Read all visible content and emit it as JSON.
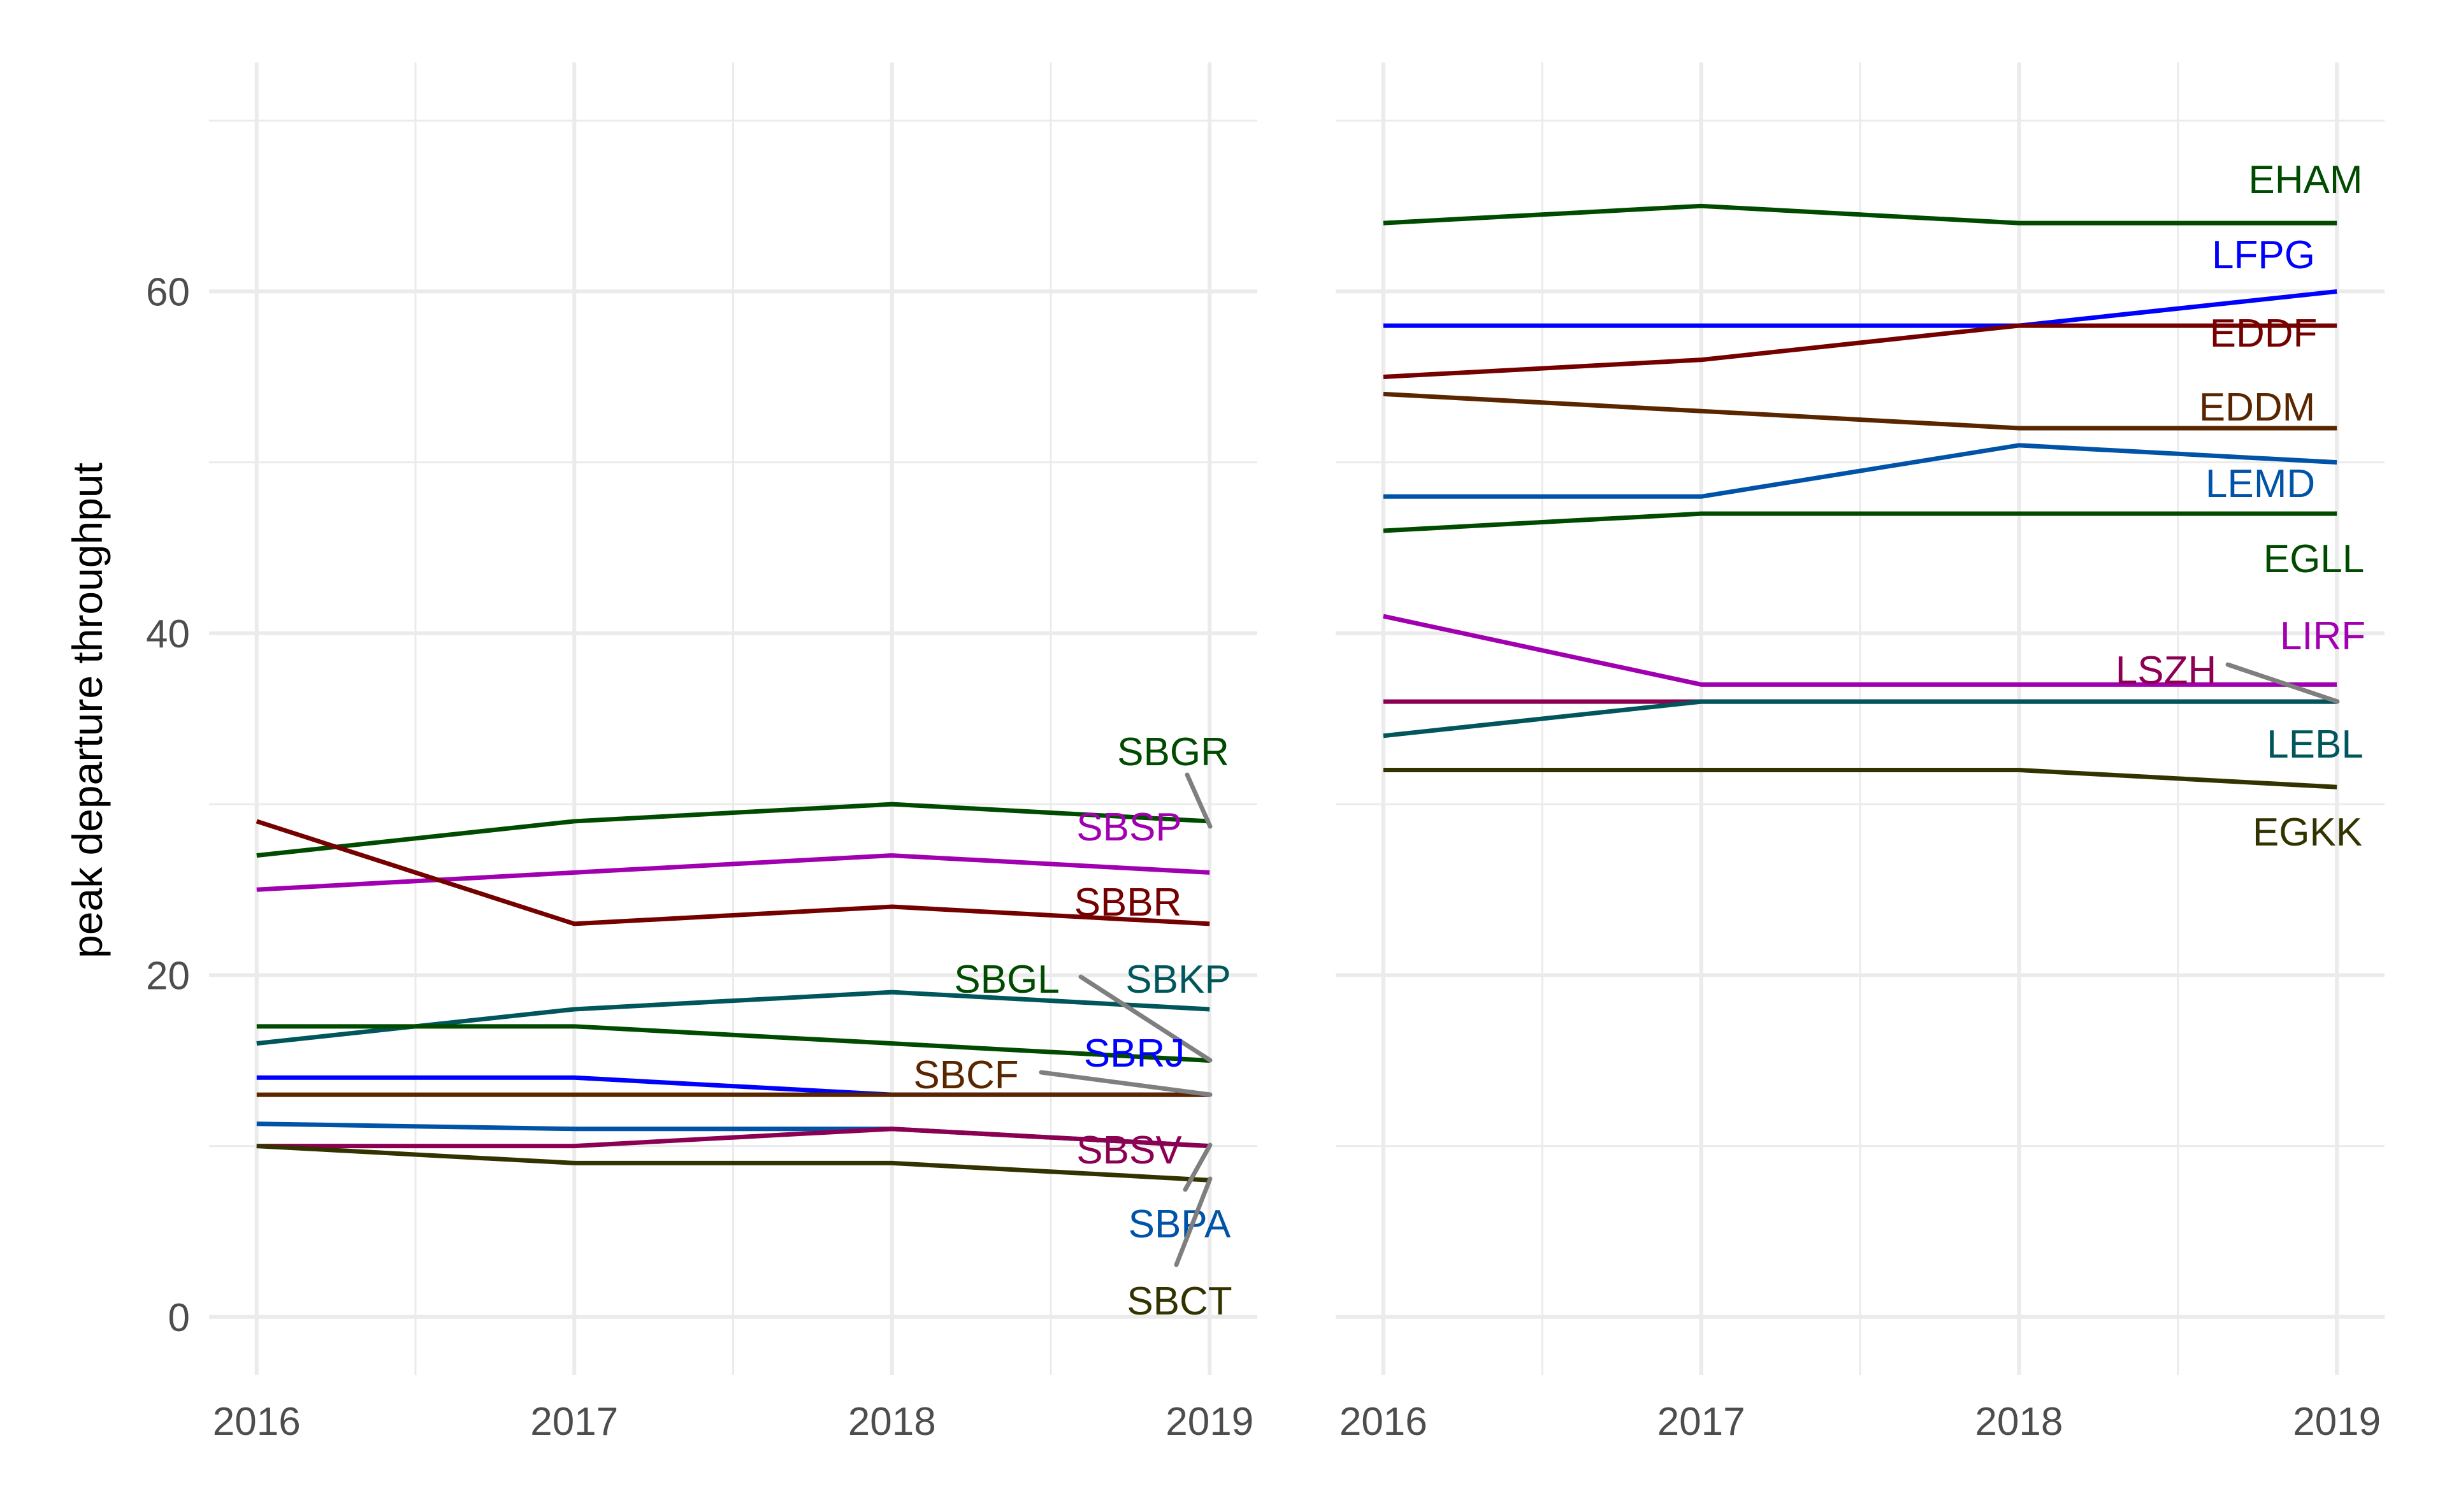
{
  "chart_data": [
    {
      "type": "line",
      "panel": "left",
      "title": "",
      "xlabel": "",
      "ylabel": "peak departure throughput",
      "x": [
        2016,
        2017,
        2018,
        2019
      ],
      "x_tick_labels": [
        "2016",
        "2017",
        "2018",
        "2019"
      ],
      "y_tick_labels": [
        "0",
        "20",
        "40",
        "60"
      ],
      "y_ticks": [
        0,
        20,
        40,
        60
      ],
      "ylim": [
        -3.4,
        73.4
      ],
      "xlim": [
        2015.85,
        2019.15
      ],
      "grid": true,
      "legend": "direct-labels-right",
      "series": [
        {
          "name": "SBGR",
          "color": "#004b00",
          "values": [
            27,
            29,
            30,
            29
          ]
        },
        {
          "name": "SBSP",
          "color": "#a000b0",
          "values": [
            25,
            26,
            27,
            26
          ]
        },
        {
          "name": "SBBR",
          "color": "#750000",
          "values": [
            29,
            23,
            24,
            23
          ]
        },
        {
          "name": "SBKP",
          "color": "#00565a",
          "values": [
            16,
            18,
            19,
            18
          ]
        },
        {
          "name": "SBGL",
          "color": "#004b00",
          "values": [
            17,
            17,
            16,
            15
          ]
        },
        {
          "name": "SBRJ",
          "color": "#0000ff",
          "values": [
            14,
            14,
            13,
            13
          ]
        },
        {
          "name": "SBCF",
          "color": "#5a2600",
          "values": [
            13,
            13,
            13,
            13
          ]
        },
        {
          "name": "SBPA",
          "color": "#0053a6",
          "values": [
            11.3,
            11,
            11,
            10
          ]
        },
        {
          "name": "SBSV",
          "color": "#8b0052",
          "values": [
            10,
            10,
            11,
            10
          ]
        },
        {
          "name": "SBCT",
          "color": "#333300",
          "values": [
            10,
            9,
            9,
            8
          ]
        }
      ]
    },
    {
      "type": "line",
      "panel": "right",
      "title": "",
      "xlabel": "",
      "ylabel": "",
      "x": [
        2016,
        2017,
        2018,
        2019
      ],
      "x_tick_labels": [
        "2016",
        "2017",
        "2018",
        "2019"
      ],
      "y_ticks": [
        0,
        20,
        40,
        60
      ],
      "ylim": [
        -3.4,
        73.4
      ],
      "xlim": [
        2015.85,
        2019.15
      ],
      "grid": true,
      "legend": "direct-labels-right",
      "series": [
        {
          "name": "EHAM",
          "color": "#004b00",
          "values": [
            64,
            65,
            64,
            64
          ]
        },
        {
          "name": "LFPG",
          "color": "#0000ff",
          "values": [
            58,
            58,
            58,
            60
          ]
        },
        {
          "name": "EDDF",
          "color": "#750000",
          "values": [
            55,
            56,
            58,
            58
          ]
        },
        {
          "name": "EDDM",
          "color": "#5a2600",
          "values": [
            54,
            53,
            52,
            52
          ]
        },
        {
          "name": "LEMD",
          "color": "#0053a6",
          "values": [
            48,
            48,
            51,
            50
          ]
        },
        {
          "name": "EGLL",
          "color": "#004b00",
          "values": [
            46,
            47,
            47,
            47
          ]
        },
        {
          "name": "LIRF",
          "color": "#a000b0",
          "values": [
            41,
            37,
            37,
            37
          ]
        },
        {
          "name": "LSZH",
          "color": "#8b0052",
          "values": [
            36,
            36,
            36,
            36
          ]
        },
        {
          "name": "LEBL",
          "color": "#00565a",
          "values": [
            34,
            36,
            36,
            36
          ]
        },
        {
          "name": "EGKK",
          "color": "#333300",
          "values": [
            32,
            32,
            32,
            31
          ]
        }
      ]
    }
  ]
}
